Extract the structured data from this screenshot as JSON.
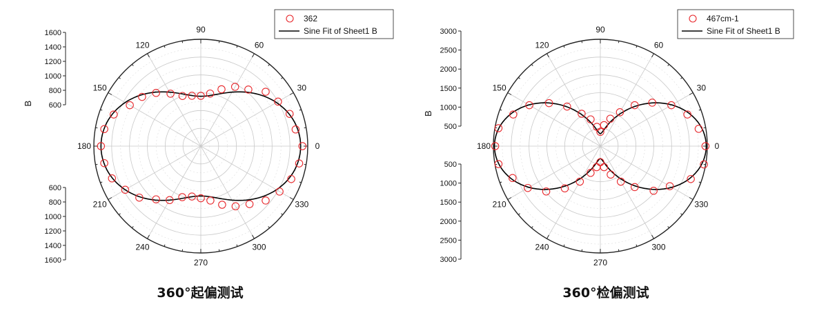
{
  "chart_data": [
    {
      "type": "polar-scatter",
      "caption": "360°起偏测试",
      "angle_labels": [
        "0",
        "30",
        "60",
        "90",
        "120",
        "150",
        "180",
        "210",
        "240",
        "270",
        "300",
        "330"
      ],
      "radial_axis_label": "B",
      "radial_range": [
        400,
        1600
      ],
      "radial_ticks_top": [
        "600",
        "800",
        "1000",
        "1200",
        "1400",
        "1600"
      ],
      "radial_ticks_bottom": [
        "600",
        "800",
        "1000",
        "1200",
        "1400",
        "1600"
      ],
      "legend": {
        "placement": "top-right",
        "entries": [
          "362",
          "Sine Fit of Sheet1 B"
        ]
      },
      "fit": {
        "name": "Sine Fit of Sheet1 B",
        "model": "A + B*cos^2(theta)",
        "A": 960,
        "B": 560
      },
      "series": [
        {
          "name": "362",
          "marker": "open-circle",
          "color": "#e8262a",
          "theta": [
            0,
            10,
            20,
            30,
            40,
            50,
            60,
            70,
            80,
            90,
            100,
            110,
            120,
            130,
            140,
            150,
            160,
            170,
            180,
            190,
            200,
            210,
            220,
            230,
            240,
            250,
            260,
            270,
            280,
            290,
            300,
            310,
            320,
            330,
            340,
            350
          ],
          "r": [
            1540,
            1480,
            1460,
            1400,
            1350,
            1230,
            1170,
            1080,
            1000,
            965,
            975,
            1000,
            1080,
            1180,
            1260,
            1320,
            1440,
            1500,
            1520,
            1500,
            1460,
            1380,
            1300,
            1180,
            1100,
            1010,
            975,
            985,
            1020,
            1100,
            1180,
            1250,
            1350,
            1420,
            1480,
            1520
          ]
        }
      ],
      "grid": true
    },
    {
      "type": "polar-scatter",
      "caption": "360°检偏测试",
      "angle_labels": [
        "0",
        "30",
        "60",
        "90",
        "120",
        "150",
        "180",
        "210",
        "240",
        "270",
        "300",
        "330"
      ],
      "radial_axis_label": "B",
      "radial_range": [
        0,
        3000
      ],
      "radial_ticks_top": [
        "500",
        "1000",
        "1500",
        "2000",
        "2500",
        "3000"
      ],
      "radial_ticks_bottom": [
        "500",
        "1000",
        "1500",
        "2000",
        "2500",
        "3000"
      ],
      "legend": {
        "placement": "top-right",
        "entries": [
          "467cm-1",
          "Sine Fit of Sheet1 B"
        ]
      },
      "fit": {
        "name": "Sine Fit of Sheet1 B",
        "model": "A + B*cos^2(theta)",
        "A": 350,
        "B": 2620
      },
      "series": [
        {
          "name": "467cm-1",
          "marker": "open-circle",
          "color": "#e8262a",
          "theta": [
            0,
            10,
            20,
            30,
            40,
            50,
            60,
            70,
            80,
            90,
            100,
            110,
            120,
            130,
            140,
            150,
            160,
            170,
            180,
            190,
            200,
            210,
            220,
            230,
            240,
            250,
            260,
            270,
            280,
            290,
            300,
            310,
            320,
            330,
            340,
            350
          ],
          "r": [
            2950,
            2800,
            2600,
            2300,
            1900,
            1500,
            1100,
            820,
            600,
            400,
            550,
            800,
            1050,
            1450,
            1880,
            2300,
            2600,
            2900,
            2950,
            2900,
            2620,
            2350,
            1980,
            1550,
            1150,
            800,
            600,
            450,
            600,
            850,
            1150,
            1500,
            1950,
            2250,
            2700,
            2950
          ]
        }
      ],
      "grid": true
    }
  ]
}
